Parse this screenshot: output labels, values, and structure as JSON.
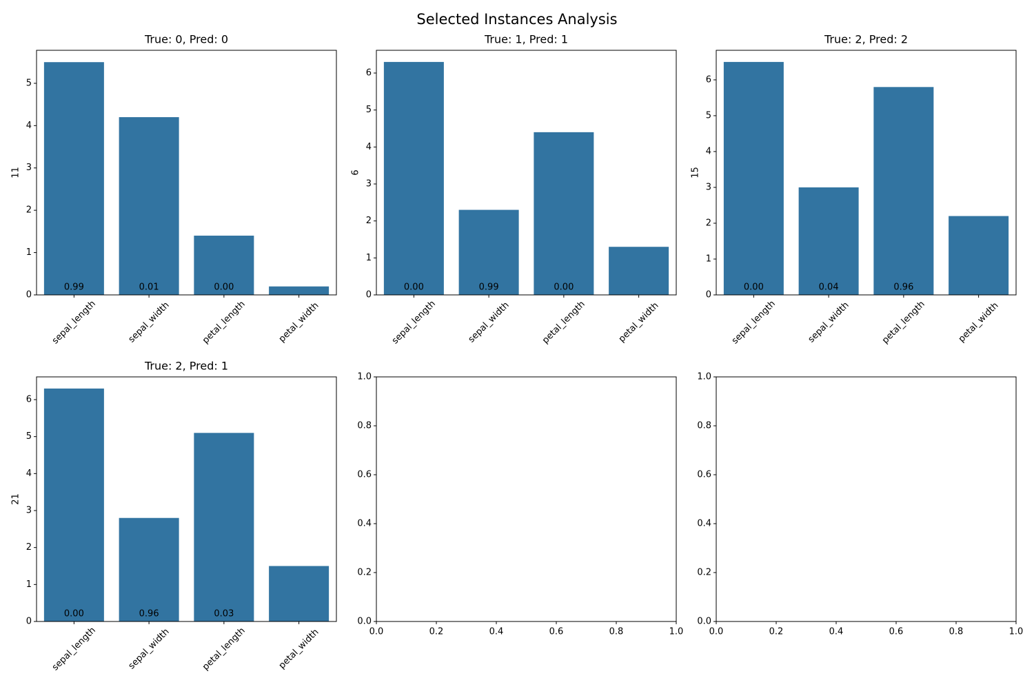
{
  "title": "Selected Instances Analysis",
  "chart_data": [
    {
      "type": "bar",
      "title": "True: 0, Pred: 0",
      "ylabel": "11",
      "categories": [
        "sepal_length",
        "sepal_width",
        "petal_length",
        "petal_width"
      ],
      "values": [
        5.5,
        4.2,
        1.4,
        0.2
      ],
      "annotations": [
        "0.99",
        "0.01",
        "0.00"
      ],
      "color": "#3274a1",
      "ylim": [
        0,
        5.78
      ],
      "yticks": [
        0,
        1,
        2,
        3,
        4,
        5
      ]
    },
    {
      "type": "bar",
      "title": "True: 1, Pred: 1",
      "ylabel": "6",
      "categories": [
        "sepal_length",
        "sepal_width",
        "petal_length",
        "petal_width"
      ],
      "values": [
        6.3,
        2.3,
        4.4,
        1.3
      ],
      "annotations": [
        "0.00",
        "0.99",
        "0.00"
      ],
      "color": "#3274a1",
      "ylim": [
        0,
        6.615
      ],
      "yticks": [
        0,
        1,
        2,
        3,
        4,
        5,
        6
      ]
    },
    {
      "type": "bar",
      "title": "True: 2, Pred: 2",
      "ylabel": "15",
      "categories": [
        "sepal_length",
        "sepal_width",
        "petal_length",
        "petal_width"
      ],
      "values": [
        6.5,
        3.0,
        5.8,
        2.2
      ],
      "annotations": [
        "0.00",
        "0.04",
        "0.96"
      ],
      "color": "#3274a1",
      "ylim": [
        0,
        6.825
      ],
      "yticks": [
        0,
        1,
        2,
        3,
        4,
        5,
        6
      ]
    },
    {
      "type": "bar",
      "title": "True: 2, Pred: 1",
      "ylabel": "21",
      "categories": [
        "sepal_length",
        "sepal_width",
        "petal_length",
        "petal_width"
      ],
      "values": [
        6.3,
        2.8,
        5.1,
        1.5
      ],
      "annotations": [
        "0.00",
        "0.96",
        "0.03"
      ],
      "color": "#3274a1",
      "ylim": [
        0,
        6.615
      ],
      "yticks": [
        0,
        1,
        2,
        3,
        4,
        5,
        6
      ]
    },
    {
      "type": "empty",
      "xlim": [
        0,
        1
      ],
      "ylim": [
        0,
        1
      ],
      "xticks": [
        {
          "value": 0,
          "label": "0.0"
        },
        {
          "value": 0.2,
          "label": "0.2"
        },
        {
          "value": 0.4,
          "label": "0.4"
        },
        {
          "value": 0.6,
          "label": "0.6"
        },
        {
          "value": 0.8,
          "label": "0.8"
        },
        {
          "value": 1,
          "label": "1.0"
        }
      ],
      "yticks": [
        {
          "value": 0,
          "label": "0.0"
        },
        {
          "value": 0.2,
          "label": "0.2"
        },
        {
          "value": 0.4,
          "label": "0.4"
        },
        {
          "value": 0.6,
          "label": "0.6"
        },
        {
          "value": 0.8,
          "label": "0.8"
        },
        {
          "value": 1,
          "label": "1.0"
        }
      ]
    },
    {
      "type": "empty",
      "xlim": [
        0,
        1
      ],
      "ylim": [
        0,
        1
      ],
      "xticks": [
        {
          "value": 0,
          "label": "0.0"
        },
        {
          "value": 0.2,
          "label": "0.2"
        },
        {
          "value": 0.4,
          "label": "0.4"
        },
        {
          "value": 0.6,
          "label": "0.6"
        },
        {
          "value": 0.8,
          "label": "0.8"
        },
        {
          "value": 1,
          "label": "1.0"
        }
      ],
      "yticks": [
        {
          "value": 0,
          "label": "0.0"
        },
        {
          "value": 0.2,
          "label": "0.2"
        },
        {
          "value": 0.4,
          "label": "0.4"
        },
        {
          "value": 0.6,
          "label": "0.6"
        },
        {
          "value": 0.8,
          "label": "0.8"
        },
        {
          "value": 1,
          "label": "1.0"
        }
      ]
    }
  ]
}
